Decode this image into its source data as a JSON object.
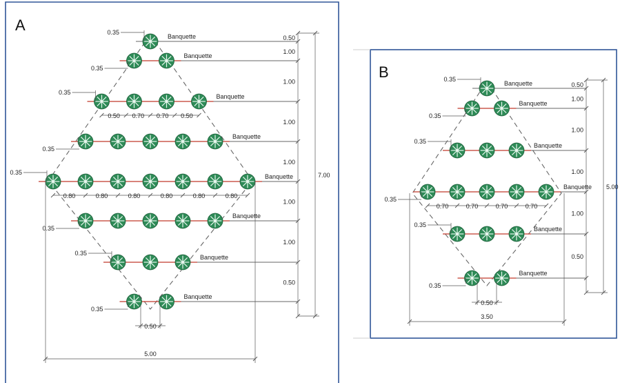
{
  "panels": [
    {
      "id": "A",
      "label": "A",
      "rows": [
        {
          "plants": 1,
          "spacing": null,
          "banquette": "Banquette",
          "offset": "0.35"
        },
        {
          "plants": 2,
          "spacing": null,
          "banquette": "Banquette",
          "offset": "0.35"
        },
        {
          "plants": 4,
          "spacing": [
            "0.50",
            "0.70",
            "0.70",
            "0.50"
          ],
          "banquette": "Banquette",
          "offset": "0.35"
        },
        {
          "plants": 5,
          "spacing": null,
          "banquette": "Banquette",
          "offset": "0.35"
        },
        {
          "plants": 7,
          "spacing": [
            "0.80",
            "0.80",
            "0.80",
            "0.80",
            "0.80",
            "0.80"
          ],
          "banquette": "Banquette",
          "offset": "0.35"
        },
        {
          "plants": 5,
          "spacing": null,
          "banquette": "Banquette",
          "offset": "0.35"
        },
        {
          "plants": 3,
          "spacing": null,
          "banquette": "Banquette",
          "offset": "0.35"
        },
        {
          "plants": 2,
          "spacing": null,
          "banquette": "Banquette",
          "offset": "0.35"
        }
      ],
      "vertical_intervals": [
        "0.50",
        "1.00",
        "1.00",
        "1.00",
        "1.00",
        "1.00",
        "1.00",
        "0.50"
      ],
      "total_height": "7.00",
      "base_gap": "0.50",
      "total_width": "5.00"
    },
    {
      "id": "B",
      "label": "B",
      "rows": [
        {
          "plants": 1,
          "spacing": null,
          "banquette": "Banquette",
          "offset": "0.35"
        },
        {
          "plants": 2,
          "spacing": null,
          "banquette": "Banquette",
          "offset": "0.35"
        },
        {
          "plants": 3,
          "spacing": null,
          "banquette": "Banquette",
          "offset": "0.35"
        },
        {
          "plants": 5,
          "spacing": [
            "0.70",
            "0.70",
            "0.70",
            "0.70"
          ],
          "banquette": "Banquette",
          "offset": "0.35"
        },
        {
          "plants": 3,
          "spacing": null,
          "banquette": "Banquette",
          "offset": "0.35"
        },
        {
          "plants": 2,
          "spacing": null,
          "banquette": "Banquette",
          "offset": "0.35"
        }
      ],
      "vertical_intervals": [
        "0.50",
        "1.00",
        "1.00",
        "1.00",
        "1.00",
        "0.50"
      ],
      "total_height": "5.00",
      "base_gap": "0.50",
      "total_width": "3.50"
    }
  ]
}
